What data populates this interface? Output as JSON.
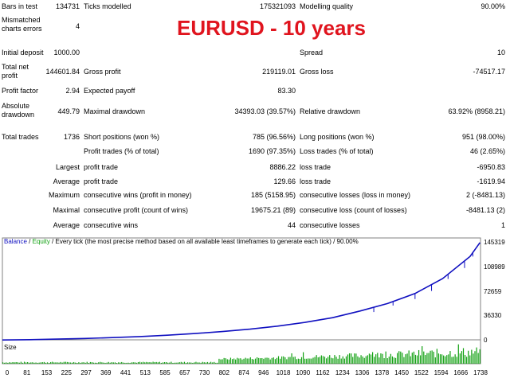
{
  "title": "EURUSD  - 10 years",
  "stats": {
    "bars_in_test_label": "Bars in test",
    "bars_in_test": "134731",
    "ticks_modelled_label": "Ticks modelled",
    "ticks_modelled": "175321093",
    "modelling_quality_label": "Modelling quality",
    "modelling_quality": "90.00%",
    "mismatched_label": "Mismatched charts errors",
    "mismatched": "4",
    "initial_deposit_label": "Initial deposit",
    "initial_deposit": "1000.00",
    "spread_label": "Spread",
    "spread": "10",
    "total_net_profit_label": "Total net profit",
    "total_net_profit": "144601.84",
    "gross_profit_label": "Gross profit",
    "gross_profit": "219119.01",
    "gross_loss_label": "Gross loss",
    "gross_loss": "-74517.17",
    "profit_factor_label": "Profit factor",
    "profit_factor": "2.94",
    "expected_payoff_label": "Expected payoff",
    "expected_payoff": "83.30",
    "absolute_drawdown_label": "Absolute drawdown",
    "absolute_drawdown": "449.79",
    "maximal_drawdown_label": "Maximal drawdown",
    "maximal_drawdown": "34393.03 (39.57%)",
    "relative_drawdown_label": "Relative drawdown",
    "relative_drawdown": "63.92% (8958.21)",
    "total_trades_label": "Total trades",
    "total_trades": "1736",
    "short_positions_label": "Short positions (won %)",
    "short_positions": "785 (96.56%)",
    "long_positions_label": "Long positions (won %)",
    "long_positions": "951 (98.00%)",
    "profit_trades_label": "Profit trades (% of total)",
    "profit_trades": "1690 (97.35%)",
    "loss_trades_label": "Loss trades (% of total)",
    "loss_trades": "46 (2.65%)",
    "largest_label": "Largest",
    "largest_profit_label": "profit trade",
    "largest_profit": "8886.22",
    "largest_loss_label": "loss trade",
    "largest_loss": "-6950.83",
    "average_label": "Average",
    "average_profit_label": "profit trade",
    "average_profit": "129.66",
    "average_loss_label": "loss trade",
    "average_loss": "-1619.94",
    "maximum_label": "Maximum",
    "max_cons_wins_label": "consecutive wins (profit in money)",
    "max_cons_wins": "185 (5158.95)",
    "max_cons_losses_label": "consecutive losses (loss in money)",
    "max_cons_losses": "2 (-8481.13)",
    "maximal_label": "Maximal",
    "maximal_cons_profit_label": "consecutive profit (count of wins)",
    "maximal_cons_profit": "19675.21 (89)",
    "maximal_cons_loss_label": "consecutive loss (count of losses)",
    "maximal_cons_loss": "-8481.13 (2)",
    "average2_label": "Average",
    "avg_cons_wins_label": "consecutive wins",
    "avg_cons_wins": "44",
    "avg_cons_losses_label": "consecutive losses",
    "avg_cons_losses": "1"
  },
  "legend": {
    "balance": "Balance",
    "sep1": " / ",
    "equity": "Equity",
    "rest": " / Every tick (the most precise method based on all available least timeframes to generate each tick) / 90.00%"
  },
  "size_label": "Size",
  "colors": {
    "balance": "#1010c0",
    "equity": "#10a010",
    "size_bars": "#10a010"
  },
  "chart_data": {
    "type": "line",
    "series": [
      {
        "name": "Balance",
        "x": [
          0,
          100,
          200,
          300,
          400,
          500,
          600,
          700,
          800,
          900,
          1000,
          1100,
          1200,
          1300,
          1400,
          1500,
          1600,
          1700,
          1736
        ],
        "values": [
          1000,
          1400,
          2200,
          3200,
          4500,
          6000,
          8000,
          10500,
          13500,
          17000,
          21500,
          27000,
          34000,
          44000,
          55000,
          70000,
          92000,
          125000,
          145602
        ]
      }
    ],
    "x_ticks": [
      "0",
      "81",
      "153",
      "225",
      "297",
      "369",
      "441",
      "513",
      "585",
      "657",
      "730",
      "802",
      "874",
      "946",
      "1018",
      "1090",
      "1162",
      "1234",
      "1306",
      "1378",
      "1450",
      "1522",
      "1594",
      "1666",
      "1738"
    ],
    "y_ticks": [
      "145319",
      "108989",
      "72659",
      "36330",
      "0"
    ],
    "ylim": [
      0,
      145319
    ],
    "xlim": [
      0,
      1738
    ]
  }
}
